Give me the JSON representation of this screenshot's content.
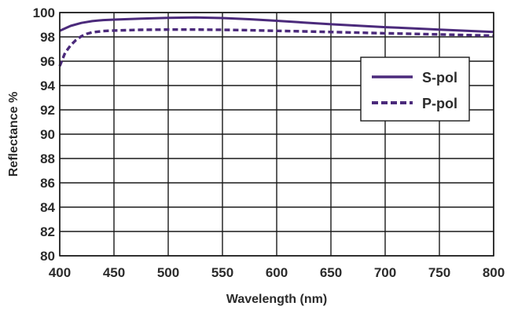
{
  "chart_data": {
    "type": "line",
    "xlabel": "Wavelength (nm)",
    "ylabel": "Reflectance %",
    "xlim": [
      400,
      800
    ],
    "ylim": [
      80,
      100
    ],
    "xticks": [
      400,
      450,
      500,
      550,
      600,
      650,
      700,
      750,
      800
    ],
    "yticks": [
      80,
      82,
      84,
      86,
      88,
      90,
      92,
      94,
      96,
      98,
      100
    ],
    "grid": true,
    "legend_position": "right",
    "line_color": "#4b2a7b",
    "series": [
      {
        "name": "S-pol",
        "style": "solid",
        "x": [
          400,
          410,
          420,
          430,
          440,
          450,
          475,
          500,
          525,
          550,
          575,
          600,
          625,
          650,
          675,
          700,
          725,
          750,
          775,
          800
        ],
        "y": [
          98.5,
          98.9,
          99.15,
          99.3,
          99.38,
          99.42,
          99.5,
          99.57,
          99.6,
          99.55,
          99.45,
          99.32,
          99.18,
          99.04,
          98.92,
          98.8,
          98.7,
          98.6,
          98.5,
          98.4
        ]
      },
      {
        "name": "P-pol",
        "style": "dashed",
        "x": [
          400,
          405,
          410,
          415,
          420,
          425,
          430,
          440,
          450,
          475,
          500,
          525,
          550,
          575,
          600,
          625,
          650,
          675,
          700,
          725,
          750,
          775,
          800
        ],
        "y": [
          95.6,
          96.7,
          97.3,
          97.75,
          98.05,
          98.25,
          98.38,
          98.48,
          98.52,
          98.58,
          98.6,
          98.6,
          98.58,
          98.55,
          98.5,
          98.45,
          98.4,
          98.35,
          98.3,
          98.25,
          98.2,
          98.15,
          98.1
        ]
      }
    ]
  }
}
